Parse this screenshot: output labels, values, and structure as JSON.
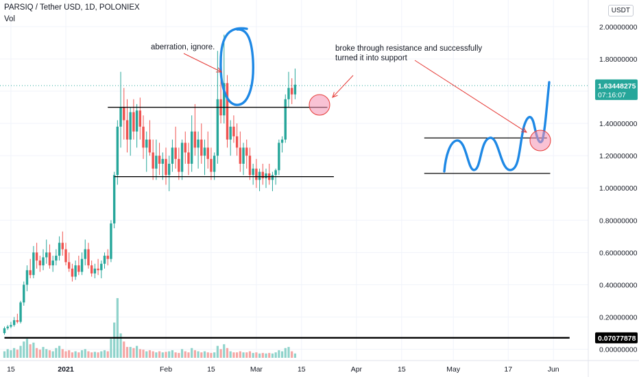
{
  "header": {
    "title": "PARSIQ / Tether USD, 1D, POLONIEX",
    "volume_label": "Vol",
    "currency_button": "USDT"
  },
  "colors": {
    "up": "#26a69a",
    "down": "#ef5350",
    "vol_up": "#8fd3cb",
    "vol_down": "#f5a6a4",
    "annotation_blue": "#1e88e5",
    "annotation_red": "#e53935",
    "circle_fill": "#f48fb1",
    "last_price_tag": "#26a69a"
  },
  "chart_data": {
    "type": "candlestick",
    "symbol": "PARSIQ / Tether USD",
    "interval": "1D",
    "exchange": "POLONIEX",
    "x_ticks": [
      "15",
      "2021",
      "Feb",
      "15",
      "Mar",
      "15",
      "Apr",
      "15",
      "May",
      "17",
      "Jun"
    ],
    "y_ticks": [
      "2.00000000",
      "1.80000000",
      "1.60000000",
      "1.40000000",
      "1.20000000",
      "1.00000000",
      "0.80000000",
      "0.60000000",
      "0.40000000",
      "0.20000000",
      "0.00000000"
    ],
    "ylim": [
      -0.06,
      2.1
    ],
    "candles_start": "2020-12-13",
    "candles": [
      [
        0.1,
        0.14,
        0.09,
        0.13
      ],
      [
        0.13,
        0.15,
        0.12,
        0.14
      ],
      [
        0.14,
        0.17,
        0.13,
        0.15
      ],
      [
        0.15,
        0.2,
        0.14,
        0.18
      ],
      [
        0.18,
        0.22,
        0.16,
        0.17
      ],
      [
        0.17,
        0.3,
        0.16,
        0.29
      ],
      [
        0.29,
        0.42,
        0.27,
        0.4
      ],
      [
        0.4,
        0.52,
        0.36,
        0.49
      ],
      [
        0.49,
        0.56,
        0.44,
        0.46
      ],
      [
        0.46,
        0.64,
        0.44,
        0.6
      ],
      [
        0.6,
        0.66,
        0.5,
        0.55
      ],
      [
        0.55,
        0.58,
        0.48,
        0.52
      ],
      [
        0.52,
        0.62,
        0.49,
        0.57
      ],
      [
        0.57,
        0.68,
        0.53,
        0.6
      ],
      [
        0.6,
        0.65,
        0.5,
        0.52
      ],
      [
        0.52,
        0.58,
        0.48,
        0.55
      ],
      [
        0.55,
        0.62,
        0.52,
        0.58
      ],
      [
        0.58,
        0.7,
        0.55,
        0.66
      ],
      [
        0.66,
        0.73,
        0.58,
        0.62
      ],
      [
        0.62,
        0.66,
        0.52,
        0.54
      ],
      [
        0.54,
        0.6,
        0.48,
        0.5
      ],
      [
        0.5,
        0.53,
        0.42,
        0.45
      ],
      [
        0.45,
        0.55,
        0.43,
        0.52
      ],
      [
        0.52,
        0.58,
        0.46,
        0.48
      ],
      [
        0.48,
        0.6,
        0.46,
        0.56
      ],
      [
        0.56,
        0.68,
        0.52,
        0.62
      ],
      [
        0.62,
        0.66,
        0.5,
        0.52
      ],
      [
        0.52,
        0.55,
        0.45,
        0.47
      ],
      [
        0.47,
        0.53,
        0.44,
        0.5
      ],
      [
        0.5,
        0.56,
        0.46,
        0.49
      ],
      [
        0.49,
        0.55,
        0.44,
        0.53
      ],
      [
        0.53,
        0.6,
        0.5,
        0.58
      ],
      [
        0.58,
        0.62,
        0.52,
        0.56
      ],
      [
        0.56,
        0.8,
        0.54,
        0.78
      ],
      [
        0.78,
        1.1,
        0.75,
        1.08
      ],
      [
        1.08,
        1.42,
        1.02,
        1.38
      ],
      [
        1.38,
        1.72,
        1.25,
        1.5
      ],
      [
        1.5,
        1.62,
        1.3,
        1.42
      ],
      [
        1.42,
        1.55,
        1.22,
        1.3
      ],
      [
        1.3,
        1.5,
        1.2,
        1.47
      ],
      [
        1.47,
        1.55,
        1.3,
        1.35
      ],
      [
        1.35,
        1.52,
        1.25,
        1.48
      ],
      [
        1.48,
        1.56,
        1.3,
        1.38
      ],
      [
        1.38,
        1.45,
        1.18,
        1.25
      ],
      [
        1.25,
        1.35,
        1.1,
        1.3
      ],
      [
        1.3,
        1.42,
        1.2,
        1.22
      ],
      [
        1.22,
        1.3,
        1.05,
        1.12
      ],
      [
        1.12,
        1.3,
        1.05,
        1.2
      ],
      [
        1.2,
        1.28,
        1.08,
        1.15
      ],
      [
        1.15,
        1.22,
        1.05,
        1.18
      ],
      [
        1.18,
        1.25,
        1.02,
        1.08
      ],
      [
        1.08,
        1.2,
        0.98,
        1.15
      ],
      [
        1.15,
        1.3,
        1.1,
        1.25
      ],
      [
        1.25,
        1.38,
        1.12,
        1.18
      ],
      [
        1.18,
        1.25,
        1.05,
        1.1
      ],
      [
        1.1,
        1.3,
        1.05,
        1.28
      ],
      [
        1.28,
        1.35,
        1.15,
        1.22
      ],
      [
        1.22,
        1.28,
        1.08,
        1.15
      ],
      [
        1.15,
        1.45,
        1.1,
        1.35
      ],
      [
        1.35,
        1.52,
        1.2,
        1.25
      ],
      [
        1.25,
        1.35,
        1.12,
        1.3
      ],
      [
        1.3,
        1.4,
        1.15,
        1.2
      ],
      [
        1.2,
        1.3,
        1.08,
        1.25
      ],
      [
        1.25,
        1.35,
        1.12,
        1.18
      ],
      [
        1.18,
        1.25,
        1.05,
        1.1
      ],
      [
        1.1,
        1.22,
        1.05,
        1.2
      ],
      [
        1.2,
        1.85,
        1.15,
        1.55
      ],
      [
        1.55,
        1.68,
        1.4,
        1.45
      ],
      [
        1.45,
        1.95,
        1.4,
        1.65
      ],
      [
        1.65,
        1.7,
        1.25,
        1.3
      ],
      [
        1.3,
        1.42,
        1.2,
        1.38
      ],
      [
        1.38,
        1.45,
        1.28,
        1.32
      ],
      [
        1.32,
        1.4,
        1.2,
        1.25
      ],
      [
        1.25,
        1.35,
        1.1,
        1.15
      ],
      [
        1.15,
        1.28,
        1.08,
        1.25
      ],
      [
        1.25,
        1.3,
        1.12,
        1.2
      ],
      [
        1.2,
        1.25,
        1.05,
        1.08
      ],
      [
        1.08,
        1.15,
        1.02,
        1.12
      ],
      [
        1.12,
        1.18,
        1.0,
        1.05
      ],
      [
        1.05,
        1.12,
        0.98,
        1.1
      ],
      [
        1.1,
        1.15,
        1.02,
        1.06
      ],
      [
        1.06,
        1.12,
        1.0,
        1.09
      ],
      [
        1.09,
        1.15,
        1.02,
        1.05
      ],
      [
        1.05,
        1.1,
        0.98,
        1.08
      ],
      [
        1.08,
        1.12,
        1.02,
        1.11
      ],
      [
        1.11,
        1.3,
        1.08,
        1.28
      ],
      [
        1.28,
        1.32,
        1.22,
        1.3
      ],
      [
        1.3,
        1.58,
        1.28,
        1.55
      ],
      [
        1.55,
        1.72,
        1.5,
        1.62
      ],
      [
        1.62,
        1.68,
        1.52,
        1.58
      ],
      [
        1.58,
        1.74,
        1.55,
        1.64
      ]
    ],
    "volume_scale": [
      0,
      0.12
    ],
    "volumes": [
      0.012,
      0.016,
      0.014,
      0.018,
      0.015,
      0.022,
      0.03,
      0.035,
      0.025,
      0.028,
      0.018,
      0.015,
      0.02,
      0.016,
      0.014,
      0.012,
      0.018,
      0.022,
      0.016,
      0.012,
      0.014,
      0.01,
      0.012,
      0.01,
      0.014,
      0.016,
      0.012,
      0.01,
      0.011,
      0.01,
      0.012,
      0.014,
      0.012,
      0.035,
      0.065,
      0.11,
      0.045,
      0.03,
      0.02,
      0.02,
      0.018,
      0.022,
      0.016,
      0.015,
      0.012,
      0.014,
      0.012,
      0.01,
      0.012,
      0.01,
      0.011,
      0.012,
      0.014,
      0.01,
      0.009,
      0.016,
      0.012,
      0.01,
      0.018,
      0.014,
      0.012,
      0.01,
      0.012,
      0.01,
      0.009,
      0.01,
      0.022,
      0.016,
      0.025,
      0.018,
      0.012,
      0.01,
      0.01,
      0.012,
      0.01,
      0.01,
      0.012,
      0.009,
      0.01,
      0.008,
      0.009,
      0.008,
      0.009,
      0.008,
      0.01,
      0.014,
      0.012,
      0.018,
      0.02,
      0.012,
      0.008
    ],
    "price_lines": [
      {
        "name": "resistance",
        "from": "2021-01-14",
        "to": "2021-03-23",
        "value": 1.5
      },
      {
        "name": "support",
        "from": "2021-01-16",
        "to": "2021-03-25",
        "value": 1.07
      },
      {
        "name": "horizontal",
        "from": "2020-12-13",
        "to": "2021-06-06",
        "value": 0.07077878
      },
      {
        "name": "sketch-resistance",
        "from": "2021-04-22",
        "to": "2021-05-30",
        "value": 1.31
      },
      {
        "name": "sketch-support",
        "from": "2021-04-22",
        "to": "2021-05-31",
        "value": 1.09
      }
    ],
    "last_price": 1.63448275,
    "countdown": "07:16:07",
    "line_price_label": "0.07077878",
    "annotations": [
      {
        "text_lines": [
          "aberration, ignore."
        ]
      },
      {
        "text_lines": [
          "broke through resistance and successfully",
          "turned it into support"
        ]
      }
    ]
  }
}
